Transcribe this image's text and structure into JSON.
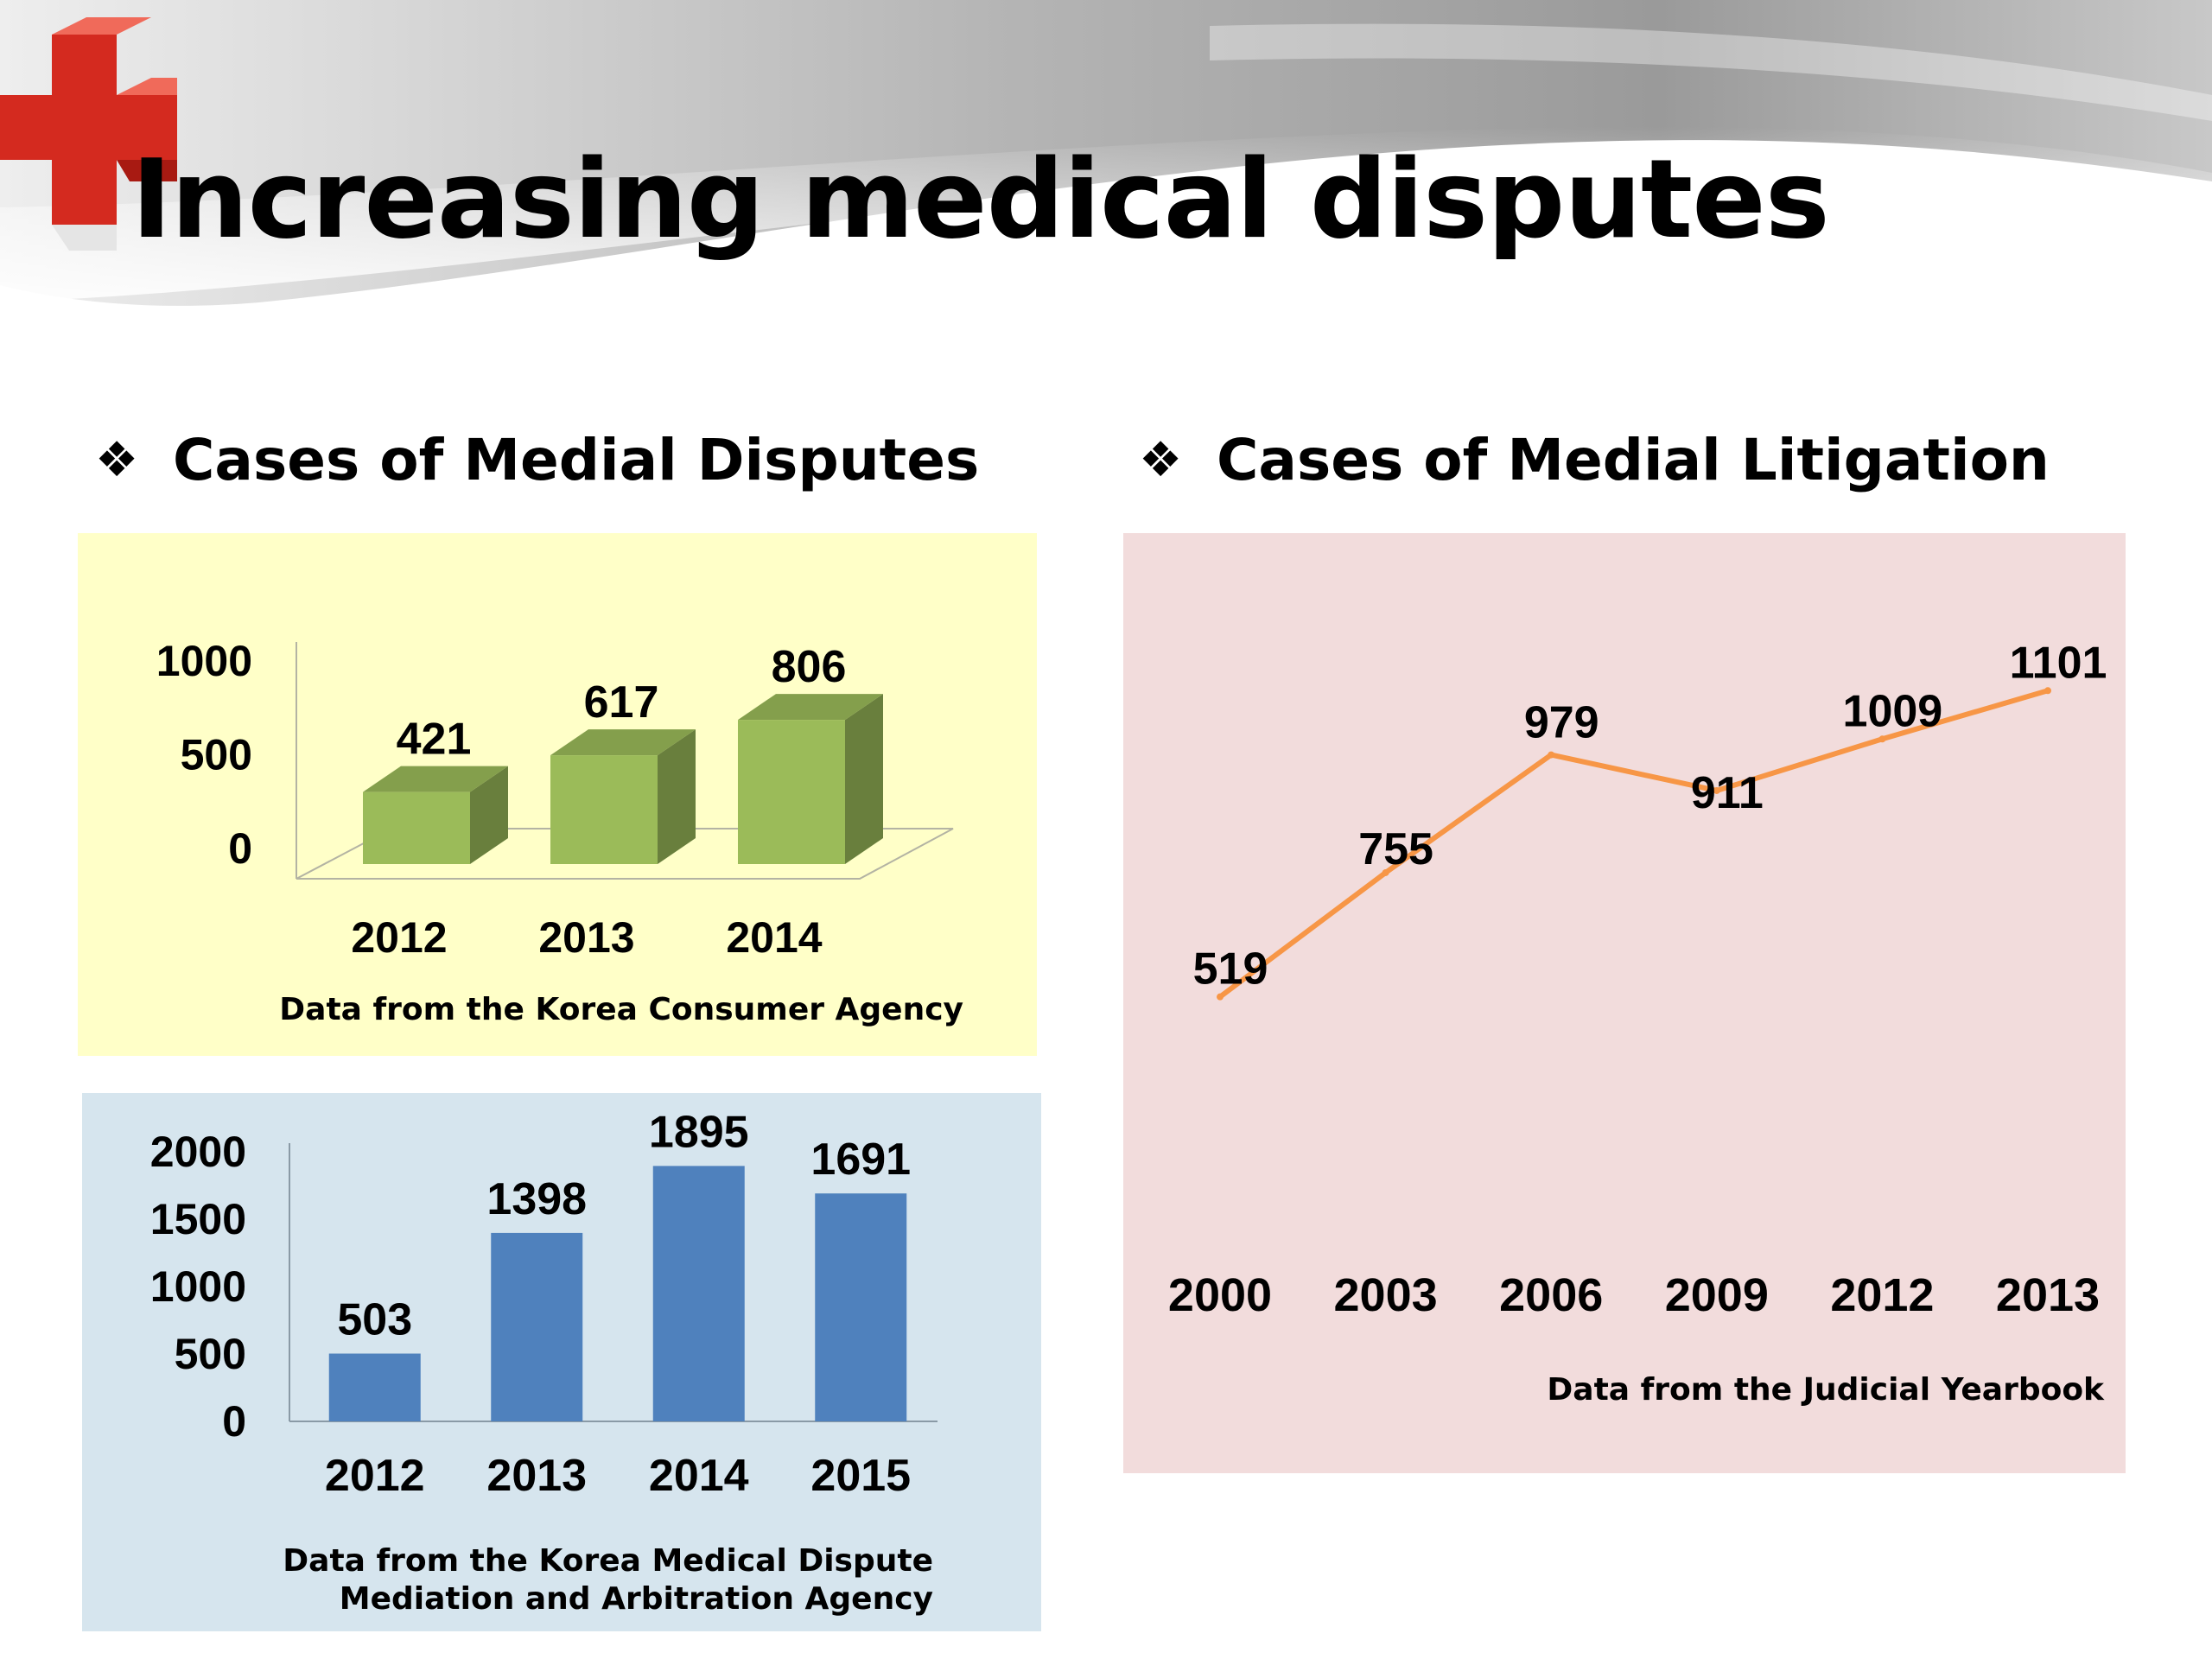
{
  "slide": {
    "title": "Increasing medical disputes",
    "headings": {
      "left": "Cases of Medial Disputes",
      "right": "Cases of Medial Litigation"
    },
    "bullet_icon": "❖",
    "colors": {
      "panel_consumer": "#ffffc8",
      "panel_mediation": "#d6e5ee",
      "panel_litigation": "#f2dcdc"
    }
  },
  "chart_data": [
    {
      "id": "consumer",
      "type": "bar",
      "style": "3d",
      "categories": [
        "2012",
        "2013",
        "2014"
      ],
      "series": [
        {
          "values": [
            421,
            617,
            806
          ]
        }
      ],
      "yticks": [
        "0",
        "500",
        "1000"
      ],
      "ylim": [
        0,
        1000
      ],
      "data_labels": true,
      "color": "#9bbb59",
      "source": "Data from the Korea Consumer Agency"
    },
    {
      "id": "mediation",
      "type": "bar",
      "categories": [
        "2012",
        "2013",
        "2014",
        "2015"
      ],
      "series": [
        {
          "values": [
            503,
            1398,
            1895,
            1691
          ]
        }
      ],
      "yticks": [
        "0",
        "500",
        "1000",
        "1500",
        "2000"
      ],
      "ylim": [
        0,
        2000
      ],
      "data_labels": true,
      "color": "#4f81bd",
      "source": "Data from the Korea Medical Dispute\nMediation and Arbitration Agency"
    },
    {
      "id": "litigation",
      "type": "line",
      "categories": [
        "2000",
        "2003",
        "2006",
        "2009",
        "2012",
        "2013"
      ],
      "series": [
        {
          "values": [
            519,
            755,
            979,
            911,
            1009,
            1101
          ]
        }
      ],
      "ylim": [
        300,
        1200
      ],
      "data_labels": true,
      "color": "#f79646",
      "source": "Data from the Judicial Yearbook"
    }
  ]
}
